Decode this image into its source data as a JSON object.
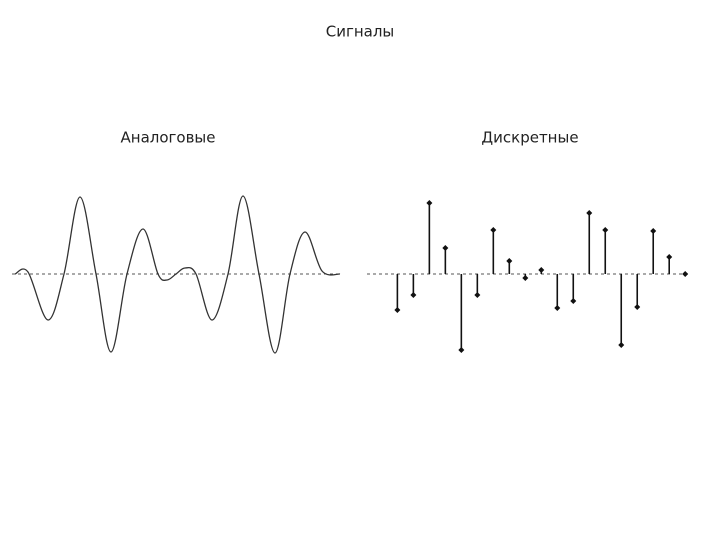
{
  "title": "Сигналы",
  "chart_data": [
    {
      "type": "line",
      "title": "Аналоговые",
      "color": "#333333",
      "x": [
        0,
        13,
        33,
        49,
        65,
        81,
        96,
        112,
        128,
        143,
        152,
        161,
        170,
        181,
        197,
        213,
        228,
        244,
        260,
        275,
        290,
        307,
        325
      ],
      "values": [
        0,
        0.2,
        -4.6,
        0,
        7.7,
        0,
        -7.8,
        0,
        4.5,
        0,
        -0.6,
        0,
        0.6,
        0,
        -4.6,
        0,
        7.8,
        0,
        -7.9,
        0,
        4.2,
        0.3,
        0
      ],
      "xlim": [
        -3,
        327
      ],
      "ylim": [
        -8,
        8
      ]
    },
    {
      "type": "stem",
      "title": "Дискретные",
      "color": "#111111",
      "x": [
        0,
        1,
        2,
        3,
        4,
        5,
        6,
        7,
        8,
        9,
        10,
        11,
        12,
        13,
        14,
        15,
        16,
        17,
        18
      ],
      "values": [
        -3.6,
        -2.1,
        7.1,
        2.6,
        -7.6,
        -2.1,
        4.4,
        1.3,
        -0.4,
        0.4,
        -3.4,
        -2.7,
        6.1,
        4.4,
        -7.1,
        -3.3,
        4.3,
        1.7,
        0
      ],
      "xlim": [
        -1.9,
        18.3
      ],
      "ylim": [
        -8,
        8
      ]
    }
  ]
}
